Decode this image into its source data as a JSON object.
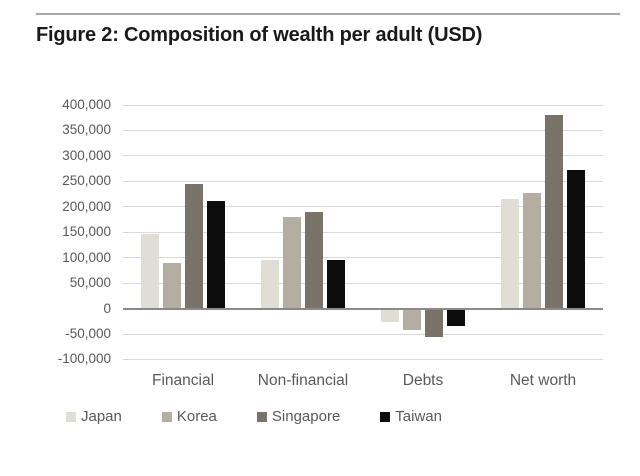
{
  "figure": {
    "title": "Figure 2: Composition of wealth per adult (USD)"
  },
  "chart_data": {
    "type": "bar",
    "title": "Figure 2: Composition of wealth per adult (USD)",
    "categories": [
      "Financial",
      "Non-financial",
      "Debts",
      "Net worth"
    ],
    "series": [
      {
        "name": "Japan",
        "color": "#e0ddd4",
        "values": [
          146000,
          95000,
          -26000,
          215000
        ]
      },
      {
        "name": "Korea",
        "color": "#b4aea0",
        "values": [
          90000,
          180000,
          -42000,
          228000
        ]
      },
      {
        "name": "Singapore",
        "color": "#787268",
        "values": [
          245000,
          190000,
          -55000,
          380000
        ]
      },
      {
        "name": "Taiwan",
        "color": "#0d0d0d",
        "values": [
          212000,
          95000,
          -35000,
          272000
        ]
      }
    ],
    "xlabel": "",
    "ylabel": "",
    "ylim": [
      -100000,
      400000
    ],
    "ytick_step": 50000,
    "yticks": [
      400000,
      350000,
      300000,
      250000,
      200000,
      150000,
      100000,
      50000,
      0,
      -50000,
      -100000
    ],
    "ytick_labels": [
      "400,000",
      "350,000",
      "300,000",
      "250,000",
      "200,000",
      "150,000",
      "100,000",
      "50,000",
      "0",
      "-50,000",
      "-100,000"
    ],
    "grid": true,
    "legend_position": "bottom"
  },
  "colors": {
    "grid_line": "#d9d9d9",
    "zero_line": "#8a8a8a",
    "axis_text": "#595959",
    "top_rule": "#a6a6a6",
    "background": "#ffffff"
  }
}
